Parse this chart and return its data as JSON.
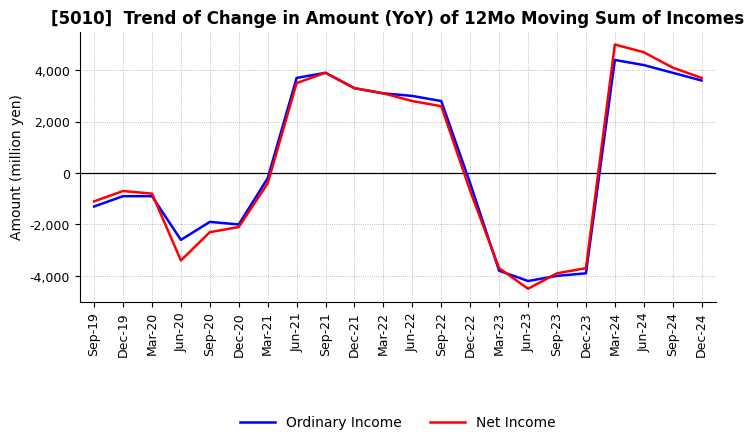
{
  "title": "[5010]  Trend of Change in Amount (YoY) of 12Mo Moving Sum of Incomes",
  "ylabel": "Amount (million yen)",
  "x_labels": [
    "Sep-19",
    "Dec-19",
    "Mar-20",
    "Jun-20",
    "Sep-20",
    "Dec-20",
    "Mar-21",
    "Jun-21",
    "Sep-21",
    "Dec-21",
    "Mar-22",
    "Jun-22",
    "Sep-22",
    "Dec-22",
    "Mar-23",
    "Jun-23",
    "Sep-23",
    "Dec-23",
    "Mar-24",
    "Jun-24",
    "Sep-24",
    "Dec-24"
  ],
  "ordinary_income": [
    -1300,
    -900,
    -900,
    -2600,
    -1900,
    -2000,
    -200,
    3700,
    3900,
    3300,
    3100,
    3000,
    2800,
    -400,
    -3800,
    -4200,
    -4000,
    -3900,
    4400,
    4200,
    3900,
    3600
  ],
  "net_income": [
    -1100,
    -700,
    -800,
    -3400,
    -2300,
    -2100,
    -400,
    3500,
    3900,
    3300,
    3100,
    2800,
    2600,
    -700,
    -3700,
    -4500,
    -3900,
    -3700,
    5000,
    4700,
    4100,
    3700
  ],
  "ordinary_color": "#0000ff",
  "net_color": "#ff0000",
  "background_color": "#ffffff",
  "grid_color": "#aaaaaa",
  "ylim": [
    -5000,
    5500
  ],
  "yticks": [
    -4000,
    -2000,
    0,
    2000,
    4000
  ],
  "title_fontsize": 12,
  "axis_fontsize": 10,
  "tick_fontsize": 9,
  "legend_fontsize": 10
}
